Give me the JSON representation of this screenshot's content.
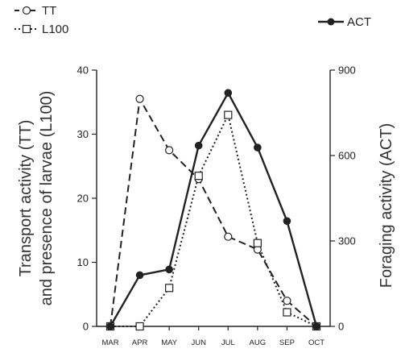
{
  "chart_data": {
    "type": "line",
    "x": [
      "MAR",
      "APR",
      "MAY",
      "JUN",
      "JUL",
      "AUG",
      "SEP",
      "OCT"
    ],
    "y_left_label_line1": "Transport activity (TT)",
    "y_left_label_line2": "and presence of larvae (L100)",
    "y_right_label": "Foraging activity (ACT)",
    "y_left_lim": [
      0,
      40
    ],
    "y_left_ticks": [
      "0",
      "10",
      "20",
      "30",
      "40"
    ],
    "y_right_lim": [
      0,
      900
    ],
    "y_right_ticks": [
      "0",
      "300",
      "600",
      "900"
    ],
    "grid": false,
    "series": [
      {
        "name": "TT",
        "axis": "left",
        "style": "dashed",
        "marker": "open-circle",
        "values": [
          0,
          35.5,
          27.5,
          23,
          14,
          12,
          4,
          0
        ]
      },
      {
        "name": "L100",
        "axis": "left",
        "style": "dotted",
        "marker": "open-square",
        "values": [
          0,
          0,
          6,
          23.5,
          33,
          13,
          2.2,
          0
        ]
      },
      {
        "name": "ACT",
        "axis": "right",
        "style": "solid",
        "marker": "filled-circle",
        "values": [
          0,
          180,
          200,
          635,
          820,
          628,
          370,
          0
        ]
      }
    ],
    "legend_left_placement": "top-left",
    "legend_right_placement": "top-right"
  }
}
